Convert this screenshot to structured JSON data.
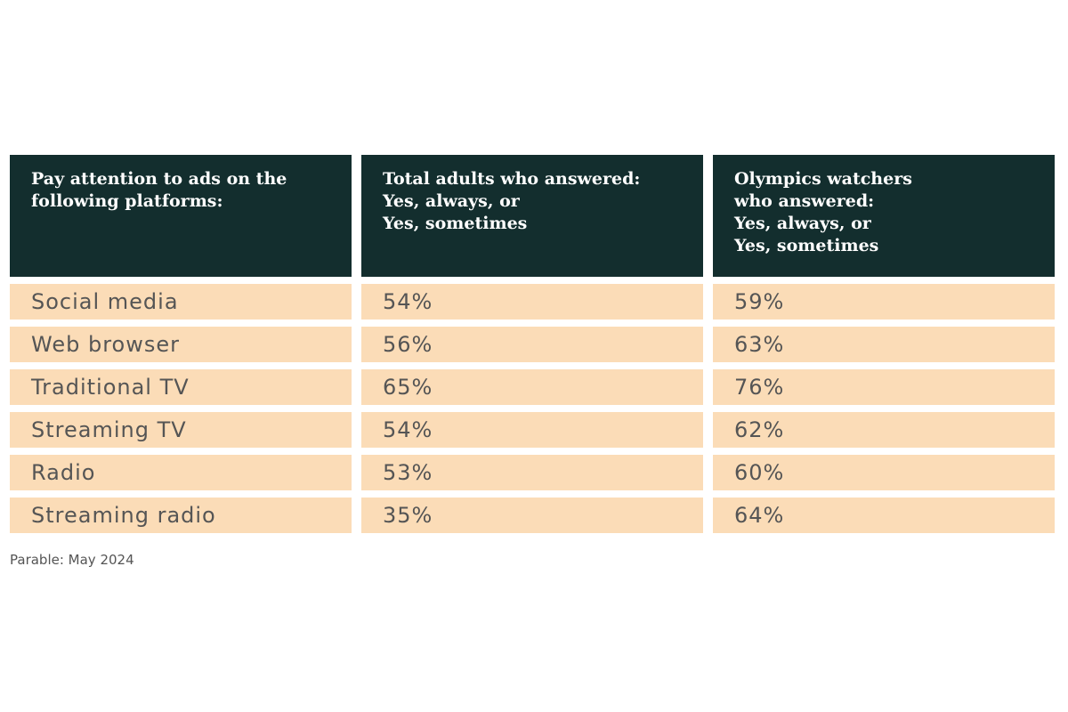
{
  "chart_data": {
    "type": "table",
    "columns": [
      "Pay attention to ads on the\nfollowing platforms:",
      "Total adults who answered:\nYes, always, or\nYes, sometimes",
      "Olympics watchers\nwho answered:\nYes, always, or\nYes, sometimes"
    ],
    "rows": [
      [
        "Social media",
        "54%",
        "59%"
      ],
      [
        "Web browser",
        "56%",
        "63%"
      ],
      [
        "Traditional TV",
        "65%",
        "76%"
      ],
      [
        "Streaming TV",
        "54%",
        "62%"
      ],
      [
        "Radio",
        "53%",
        "60%"
      ],
      [
        "Streaming radio",
        "35%",
        "64%"
      ]
    ],
    "source": "Parable: May 2024"
  },
  "colors": {
    "header_bg": "#132e2e",
    "row_bg": "#fbdcb7",
    "text": "#555555"
  }
}
